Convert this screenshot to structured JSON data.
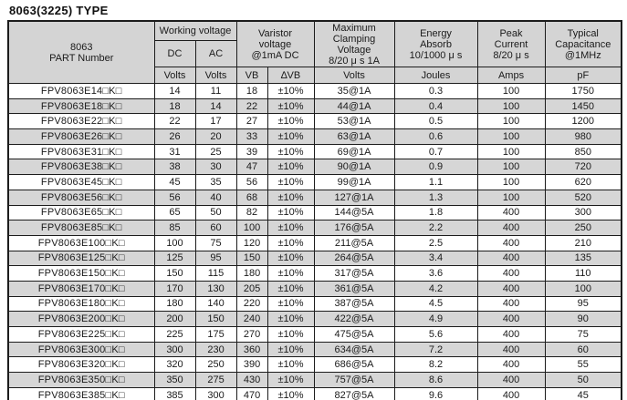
{
  "title": "8063(3225) TYPE",
  "colors": {
    "header_bg": "#d4d4d4",
    "row_alt_bg": "#d6d6d6",
    "row_bg": "#ffffff",
    "border": "#1c1c1c",
    "text": "#1a1a1a"
  },
  "table": {
    "header": {
      "part_number": "8063\nPART Number",
      "working_voltage": "Working voltage",
      "dc": "DC",
      "ac": "AC",
      "varistor_voltage": "Varistor\nvoltage\n@1mA DC",
      "max_clamping_voltage": "Maximum\nClamping\nVoltage\n8/20 μ s 1A",
      "energy_absorb": "Energy\nAbsorb\n10/1000 μ s",
      "peak_current": "Peak\nCurrent\n8/20 μ s",
      "typical_capacitance": "Typical\nCapacitance\n@1MHz",
      "units": {
        "dc": "Volts",
        "ac": "Volts",
        "vb": "VB",
        "delta_vb": "∆VB",
        "clamping": "Volts",
        "energy": "Joules",
        "peak": "Amps",
        "capacitance": "pF"
      }
    },
    "rows": [
      [
        "FPV8063E14□K□",
        "14",
        "11",
        "18",
        "±10%",
        "35@1A",
        "0.3",
        "100",
        "1750"
      ],
      [
        "FPV8063E18□K□",
        "18",
        "14",
        "22",
        "±10%",
        "44@1A",
        "0.4",
        "100",
        "1450"
      ],
      [
        "FPV8063E22□K□",
        "22",
        "17",
        "27",
        "±10%",
        "53@1A",
        "0.5",
        "100",
        "1200"
      ],
      [
        "FPV8063E26□K□",
        "26",
        "20",
        "33",
        "±10%",
        "63@1A",
        "0.6",
        "100",
        "980"
      ],
      [
        "FPV8063E31□K□",
        "31",
        "25",
        "39",
        "±10%",
        "69@1A",
        "0.7",
        "100",
        "850"
      ],
      [
        "FPV8063E38□K□",
        "38",
        "30",
        "47",
        "±10%",
        "90@1A",
        "0.9",
        "100",
        "720"
      ],
      [
        "FPV8063E45□K□",
        "45",
        "35",
        "56",
        "±10%",
        "99@1A",
        "1.1",
        "100",
        "620"
      ],
      [
        "FPV8063E56□K□",
        "56",
        "40",
        "68",
        "±10%",
        "127@1A",
        "1.3",
        "100",
        "520"
      ],
      [
        "FPV8063E65□K□",
        "65",
        "50",
        "82",
        "±10%",
        "144@5A",
        "1.8",
        "400",
        "300"
      ],
      [
        "FPV8063E85□K□",
        "85",
        "60",
        "100",
        "±10%",
        "176@5A",
        "2.2",
        "400",
        "250"
      ],
      [
        "FPV8063E100□K□",
        "100",
        "75",
        "120",
        "±10%",
        "211@5A",
        "2.5",
        "400",
        "210"
      ],
      [
        "FPV8063E125□K□",
        "125",
        "95",
        "150",
        "±10%",
        "264@5A",
        "3.4",
        "400",
        "135"
      ],
      [
        "FPV8063E150□K□",
        "150",
        "115",
        "180",
        "±10%",
        "317@5A",
        "3.6",
        "400",
        "110"
      ],
      [
        "FPV8063E170□K□",
        "170",
        "130",
        "205",
        "±10%",
        "361@5A",
        "4.2",
        "400",
        "100"
      ],
      [
        "FPV8063E180□K□",
        "180",
        "140",
        "220",
        "±10%",
        "387@5A",
        "4.5",
        "400",
        "95"
      ],
      [
        "FPV8063E200□K□",
        "200",
        "150",
        "240",
        "±10%",
        "422@5A",
        "4.9",
        "400",
        "90"
      ],
      [
        "FPV8063E225□K□",
        "225",
        "175",
        "270",
        "±10%",
        "475@5A",
        "5.6",
        "400",
        "75"
      ],
      [
        "FPV8063E300□K□",
        "300",
        "230",
        "360",
        "±10%",
        "634@5A",
        "7.2",
        "400",
        "60"
      ],
      [
        "FPV8063E320□K□",
        "320",
        "250",
        "390",
        "±10%",
        "686@5A",
        "8.2",
        "400",
        "55"
      ],
      [
        "FPV8063E350□K□",
        "350",
        "275",
        "430",
        "±10%",
        "757@5A",
        "8.6",
        "400",
        "50"
      ],
      [
        "FPV8063E385□K□",
        "385",
        "300",
        "470",
        "±10%",
        "827@5A",
        "9.6",
        "400",
        "45"
      ]
    ]
  }
}
